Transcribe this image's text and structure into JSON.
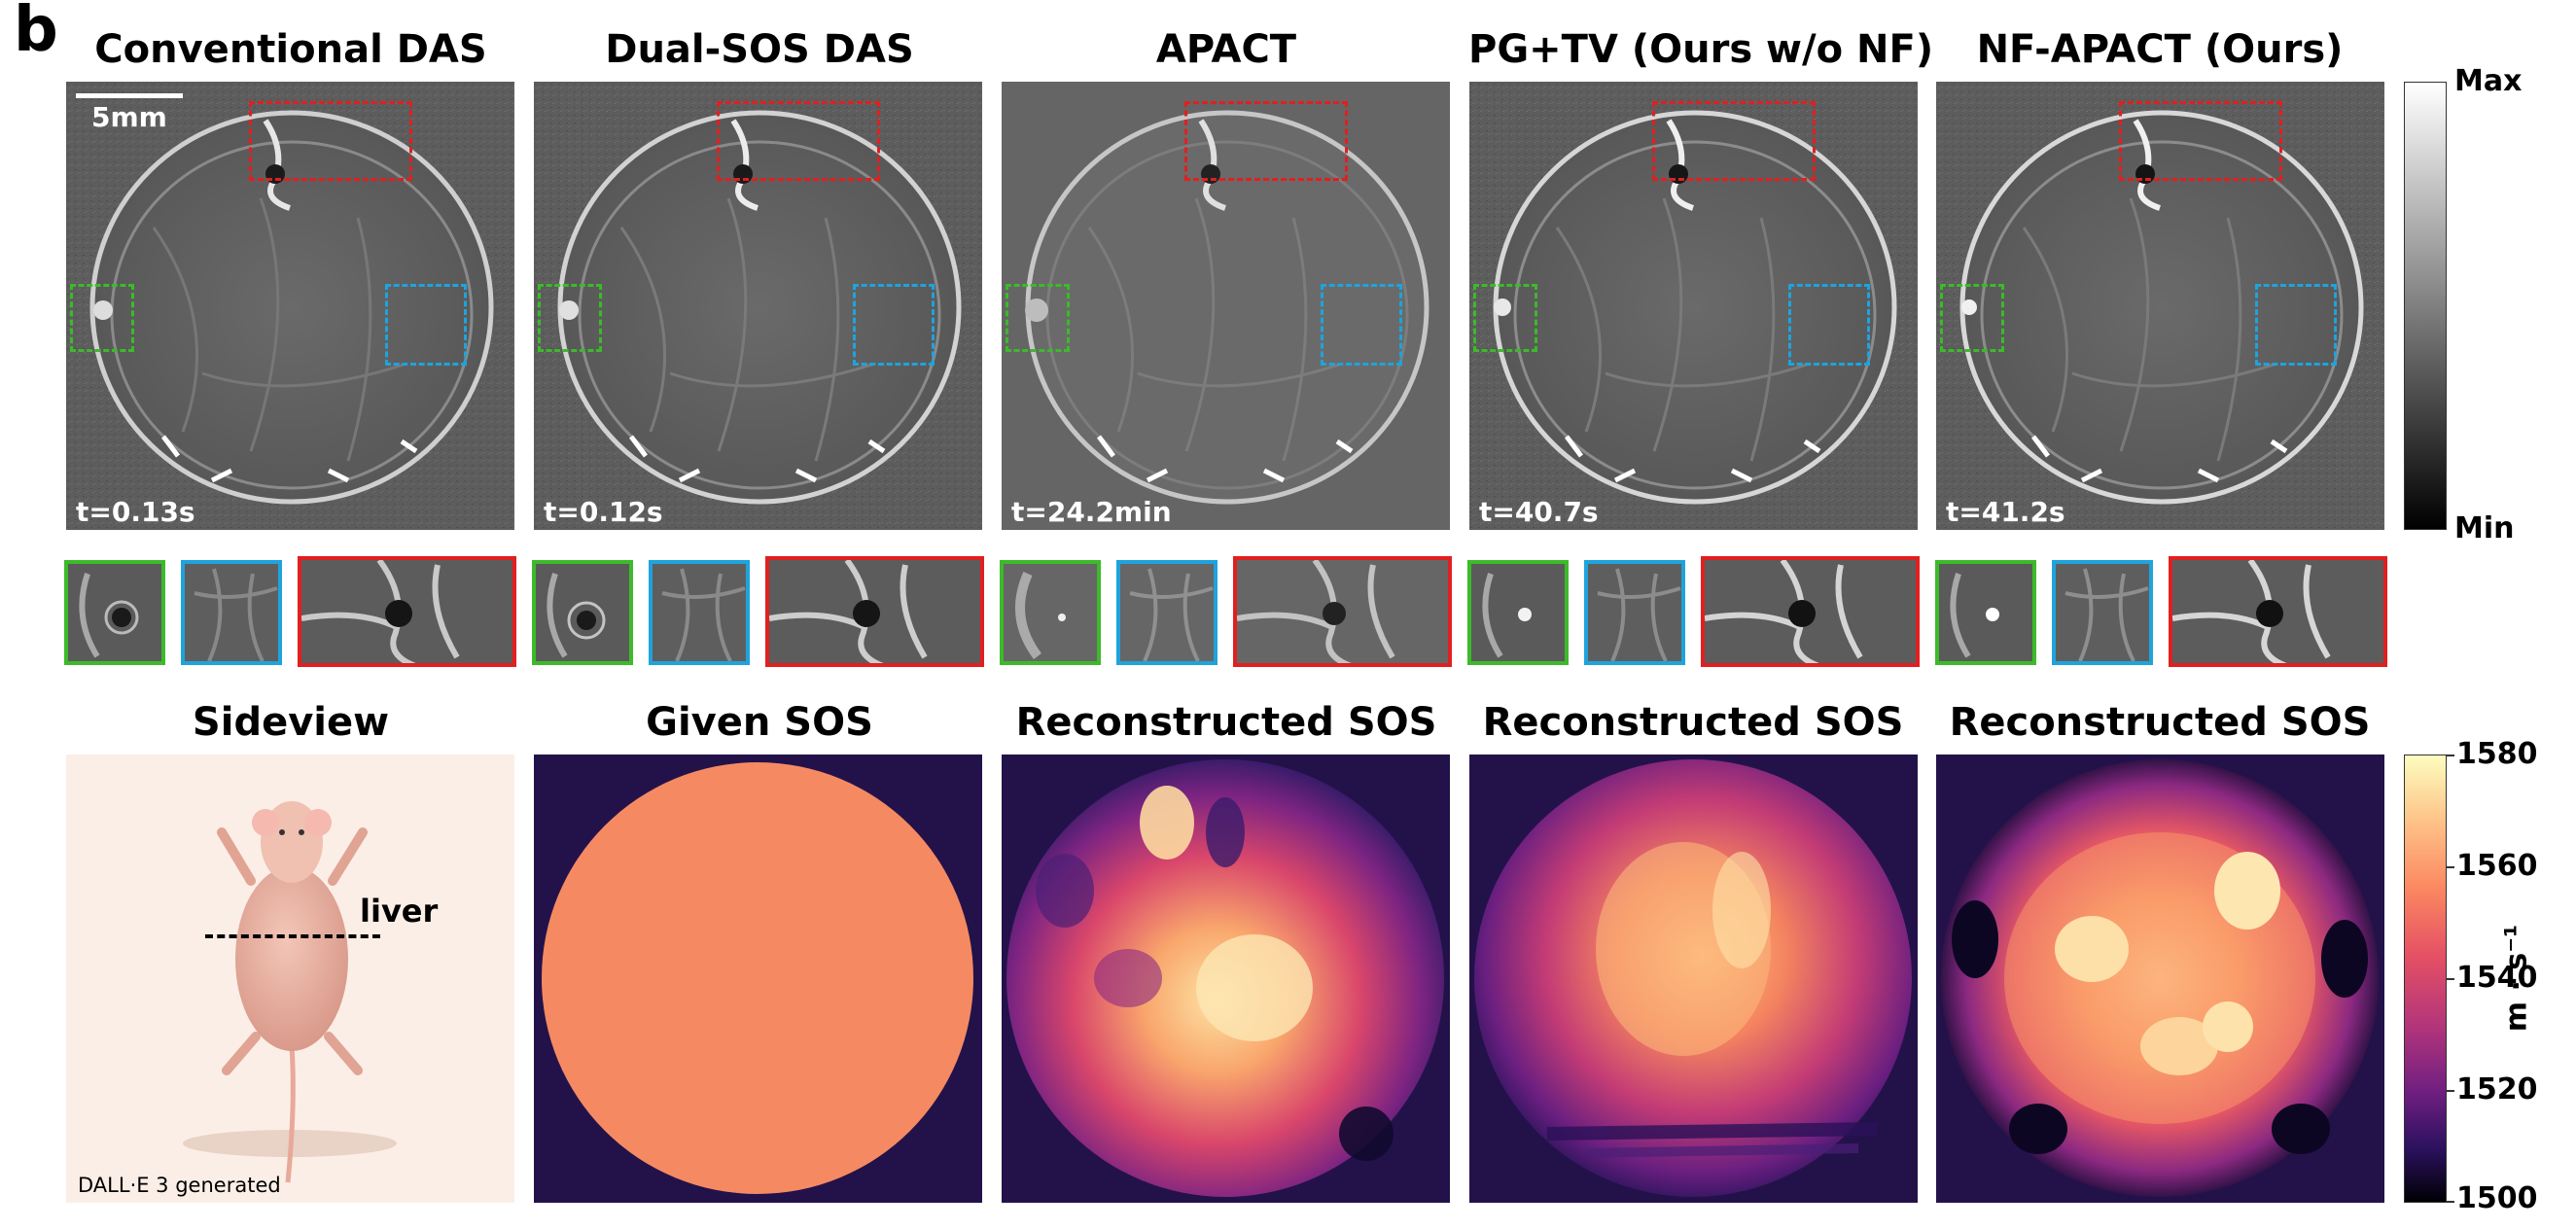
{
  "panel_label": "b",
  "top_row": {
    "columns": [
      {
        "title": "Conventional DAS",
        "time": "t=0.13s"
      },
      {
        "title": "Dual-SOS DAS",
        "time": "t=0.12s"
      },
      {
        "title": "APACT",
        "time": "t=24.2min"
      },
      {
        "title": "PG+TV (Ours w/o NF)",
        "time": "t=40.7s"
      },
      {
        "title": "NF-APACT (Ours)",
        "time": "t=41.2s"
      }
    ],
    "scale_bar": "5mm",
    "colorbar": {
      "max": "Max",
      "min": "Min"
    }
  },
  "bottom_row": {
    "sideview": {
      "title": "Sideview",
      "organ_label": "liver",
      "credit": "DALL·E 3 generated"
    },
    "sos_titles": [
      "Given SOS",
      "Reconstructed SOS",
      "Reconstructed SOS",
      "Reconstructed SOS"
    ],
    "colorbar": {
      "unit": "m · s⁻¹",
      "ticks": [
        "1580",
        "1560",
        "1540",
        "1520",
        "1500"
      ]
    }
  },
  "colors": {
    "box_green": "#3cba2a",
    "box_blue": "#1fa3dc",
    "box_red": "#e11f1f",
    "sos_background": "#23124a",
    "sos_given": "#f58a62"
  }
}
